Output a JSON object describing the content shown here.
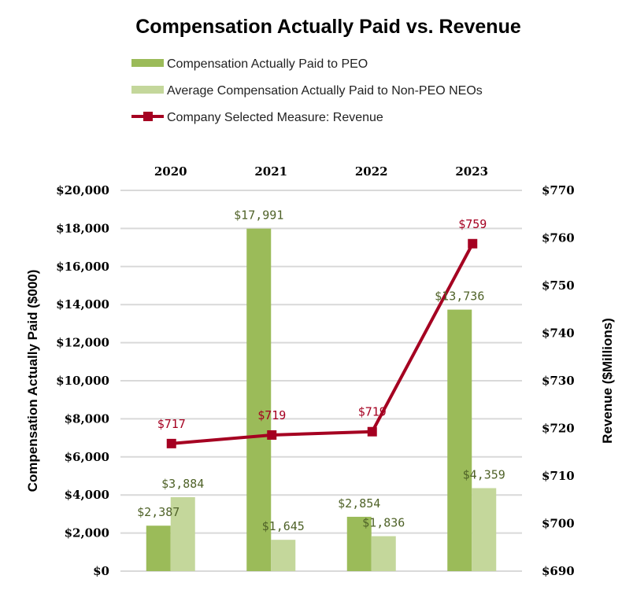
{
  "chart_data": {
    "type": "bar",
    "title": "Compensation Actually Paid vs. Revenue",
    "categories": [
      "2020",
      "2021",
      "2022",
      "2023"
    ],
    "ylabel": "Compensation Actually Paid ($000)",
    "y2label": "Revenue ($Millions)",
    "ylim": [
      0,
      20000
    ],
    "y2lim": [
      690,
      770
    ],
    "yticks": [
      "$0",
      "$2,000",
      "$4,000",
      "$6,000",
      "$8,000",
      "$10,000",
      "$12,000",
      "$14,000",
      "$16,000",
      "$18,000",
      "$20,000"
    ],
    "y2ticks": [
      "$690",
      "$700",
      "$710",
      "$720",
      "$730",
      "$740",
      "$750",
      "$760",
      "$770"
    ],
    "grid": true,
    "legend_position": "top",
    "series": [
      {
        "name": "Compensation Actually Paid to PEO",
        "type": "bar",
        "axis": "left",
        "color": "#9bbb59",
        "values": [
          2387,
          17991,
          2854,
          13736
        ],
        "labels": [
          "$2,387",
          "$17,991",
          "$2,854",
          "$13,736"
        ]
      },
      {
        "name": "Average Compensation Actually Paid to Non-PEO NEOs",
        "type": "bar",
        "axis": "left",
        "color": "#c4d79b",
        "values": [
          3884,
          1645,
          1836,
          4359
        ],
        "labels": [
          "$3,884",
          "$1,645",
          "$1,836",
          "$4,359"
        ]
      },
      {
        "name": "Company Selected Measure: Revenue",
        "type": "line",
        "axis": "right",
        "color": "#a50021",
        "values": [
          716.8,
          718.6,
          719.3,
          758.8
        ],
        "labels": [
          "$717",
          "$719",
          "$719",
          "$759"
        ]
      }
    ]
  }
}
